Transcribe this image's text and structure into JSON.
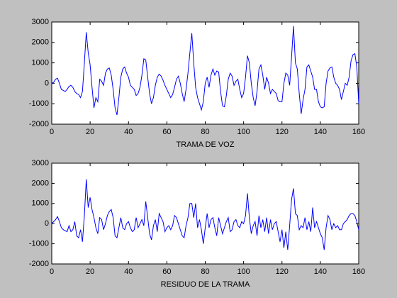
{
  "chart_data": [
    {
      "type": "line",
      "xlabel": "TRAMA DE VOZ",
      "x": [
        0,
        1,
        2,
        3,
        4,
        5,
        6,
        7,
        8,
        9,
        10,
        11,
        12,
        13,
        14,
        15,
        16,
        17,
        18,
        19,
        20,
        21,
        22,
        23,
        24,
        25,
        26,
        27,
        28,
        29,
        30,
        31,
        32,
        33,
        34,
        35,
        36,
        37,
        38,
        39,
        40,
        41,
        42,
        43,
        44,
        45,
        46,
        47,
        48,
        49,
        50,
        51,
        52,
        53,
        54,
        55,
        56,
        57,
        58,
        59,
        60,
        61,
        62,
        63,
        64,
        65,
        66,
        67,
        68,
        69,
        70,
        71,
        72,
        73,
        74,
        75,
        76,
        77,
        78,
        79,
        80,
        81,
        82,
        83,
        84,
        85,
        86,
        87,
        88,
        89,
        90,
        91,
        92,
        93,
        94,
        95,
        96,
        97,
        98,
        99,
        100,
        101,
        102,
        103,
        104,
        105,
        106,
        107,
        108,
        109,
        110,
        111,
        112,
        113,
        114,
        115,
        116,
        117,
        118,
        119,
        120,
        121,
        122,
        123,
        124,
        125,
        126,
        127,
        128,
        129,
        130,
        131,
        132,
        133,
        134,
        135,
        136,
        137,
        138,
        139,
        140,
        141,
        142,
        143,
        144,
        145,
        146,
        147,
        148,
        149,
        150,
        151,
        152,
        153,
        154,
        155,
        156,
        157,
        158,
        159,
        160
      ],
      "series": [
        {
          "color": "#0000ff",
          "values": [
            0,
            50,
            200,
            250,
            0,
            -300,
            -350,
            -400,
            -300,
            -150,
            -100,
            -200,
            -400,
            -500,
            -550,
            -700,
            -400,
            1000,
            2500,
            1500,
            900,
            -200,
            -1200,
            -700,
            -900,
            200,
            100,
            -100,
            500,
            700,
            750,
            400,
            -300,
            -1200,
            -1550,
            -700,
            300,
            700,
            800,
            500,
            300,
            -100,
            -200,
            -300,
            -600,
            -500,
            -200,
            400,
            1200,
            1150,
            300,
            -500,
            -1000,
            -700,
            -100,
            300,
            450,
            350,
            150,
            -100,
            -300,
            -500,
            -700,
            -550,
            -200,
            200,
            350,
            0,
            -500,
            -900,
            -300,
            500,
            1500,
            2450,
            1000,
            -200,
            -700,
            -1000,
            -1300,
            -900,
            0,
            300,
            -200,
            400,
            700,
            400,
            600,
            550,
            -400,
            -1100,
            -1150,
            -600,
            200,
            500,
            350,
            -100,
            100,
            200,
            -300,
            -700,
            -500,
            300,
            1350,
            1000,
            0,
            -700,
            -1100,
            -400,
            700,
            900,
            400,
            -300,
            300,
            0,
            -500,
            -300,
            -400,
            -500,
            -850,
            -900,
            -900,
            0,
            500,
            400,
            -100,
            1300,
            2800,
            1000,
            700,
            -500,
            -1500,
            -800,
            -300,
            800,
            900,
            600,
            300,
            -300,
            -300,
            -900,
            -1150,
            -1200,
            -1150,
            0,
            600,
            750,
            800,
            300,
            0,
            -100,
            -300,
            -800,
            -400,
            0,
            -100,
            300,
            1100,
            1400,
            1450,
            800,
            -1000
          ]
        }
      ],
      "xlim": [
        0,
        160
      ],
      "xticks": [
        0,
        20,
        40,
        60,
        80,
        100,
        120,
        140,
        160
      ],
      "ylim": [
        -2000,
        3000
      ],
      "yticks": [
        -2000,
        -1000,
        0,
        1000,
        2000,
        3000
      ]
    },
    {
      "type": "line",
      "xlabel": "RESIDUO DE LA TRAMA",
      "x": [
        0,
        1,
        2,
        3,
        4,
        5,
        6,
        7,
        8,
        9,
        10,
        11,
        12,
        13,
        14,
        15,
        16,
        17,
        18,
        19,
        20,
        21,
        22,
        23,
        24,
        25,
        26,
        27,
        28,
        29,
        30,
        31,
        32,
        33,
        34,
        35,
        36,
        37,
        38,
        39,
        40,
        41,
        42,
        43,
        44,
        45,
        46,
        47,
        48,
        49,
        50,
        51,
        52,
        53,
        54,
        55,
        56,
        57,
        58,
        59,
        60,
        61,
        62,
        63,
        64,
        65,
        66,
        67,
        68,
        69,
        70,
        71,
        72,
        73,
        74,
        75,
        76,
        77,
        78,
        79,
        80,
        81,
        82,
        83,
        84,
        85,
        86,
        87,
        88,
        89,
        90,
        91,
        92,
        93,
        94,
        95,
        96,
        97,
        98,
        99,
        100,
        101,
        102,
        103,
        104,
        105,
        106,
        107,
        108,
        109,
        110,
        111,
        112,
        113,
        114,
        115,
        116,
        117,
        118,
        119,
        120,
        121,
        122,
        123,
        124,
        125,
        126,
        127,
        128,
        129,
        130,
        131,
        132,
        133,
        134,
        135,
        136,
        137,
        138,
        139,
        140,
        141,
        142,
        143,
        144,
        145,
        146,
        147,
        148,
        149,
        150,
        151,
        152,
        153,
        154,
        155,
        156,
        157,
        158,
        159,
        160
      ],
      "series": [
        {
          "color": "#0000ff",
          "values": [
            0,
            100,
            200,
            350,
            100,
            -200,
            -300,
            -350,
            -400,
            -100,
            -400,
            -300,
            100,
            -600,
            -700,
            -300,
            -900,
            400,
            2200,
            800,
            1300,
            700,
            300,
            -200,
            -500,
            300,
            200,
            -300,
            0,
            400,
            600,
            700,
            300,
            -600,
            -700,
            -200,
            300,
            -200,
            -300,
            0,
            100,
            -200,
            -400,
            -300,
            300,
            -200,
            0,
            200,
            -100,
            1100,
            300,
            -500,
            -800,
            -100,
            200,
            -400,
            500,
            300,
            100,
            -400,
            -200,
            -100,
            -300,
            -100,
            400,
            300,
            0,
            -300,
            -600,
            -700,
            -100,
            300,
            1000,
            1000,
            300,
            1000,
            -200,
            200,
            -300,
            -1000,
            -200,
            500,
            -200,
            200,
            300,
            -200,
            -600,
            300,
            -100,
            -500,
            -200,
            100,
            300,
            -400,
            -300,
            100,
            200,
            -100,
            -200,
            100,
            0,
            400,
            1500,
            300,
            -500,
            -100,
            100,
            -600,
            400,
            -200,
            200,
            -400,
            300,
            -500,
            200,
            -300,
            0,
            100,
            -400,
            -900,
            -300,
            -1200,
            -400,
            -1300,
            -100,
            1200,
            1750,
            500,
            400,
            -300,
            -100,
            -200,
            300,
            -300,
            100,
            -400,
            800,
            -200,
            100,
            -200,
            -500,
            -700,
            -1300,
            -200,
            400,
            200,
            -300,
            0,
            -200,
            -100,
            -300,
            -300,
            0,
            100,
            200,
            400,
            500,
            500,
            400,
            100,
            -300
          ]
        }
      ],
      "xlim": [
        0,
        160
      ],
      "xticks": [
        0,
        20,
        40,
        60,
        80,
        100,
        120,
        140,
        160
      ],
      "ylim": [
        -2000,
        3000
      ],
      "yticks": [
        -2000,
        -1000,
        0,
        1000,
        2000,
        3000
      ]
    }
  ]
}
